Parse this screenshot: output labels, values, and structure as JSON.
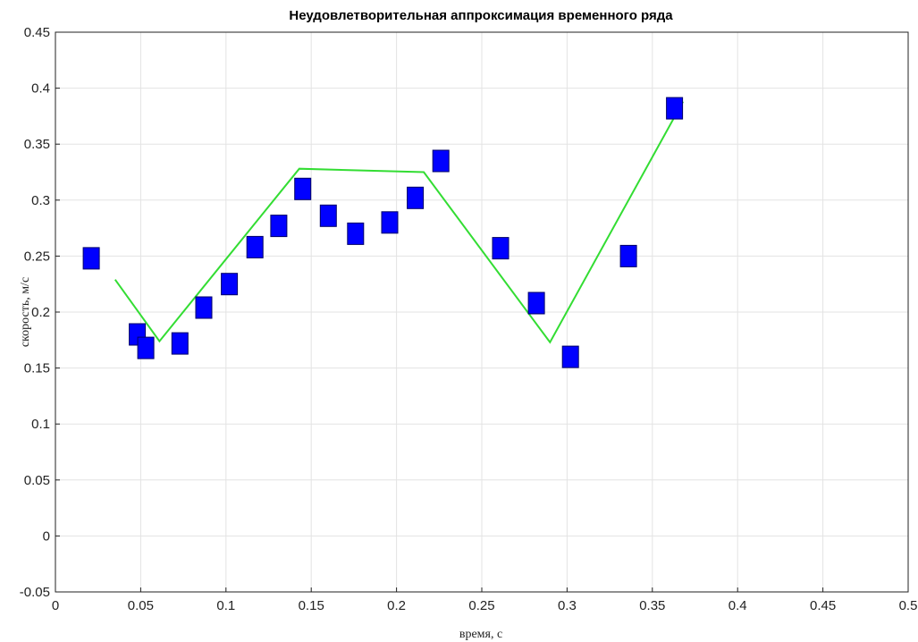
{
  "chart_data": {
    "type": "scatter",
    "title": "Неудовлетворительная аппроксимация временного ряда",
    "xlabel": "время, с",
    "ylabel": "скорость, м/с",
    "xlim": [
      0,
      0.5
    ],
    "ylim": [
      -0.05,
      0.45
    ],
    "xticks": [
      "0",
      "0.05",
      "0.1",
      "0.15",
      "0.2",
      "0.25",
      "0.3",
      "0.35",
      "0.4",
      "0.45",
      "0.5"
    ],
    "yticks": [
      "-0.05",
      "0",
      "0.05",
      "0.1",
      "0.15",
      "0.2",
      "0.25",
      "0.3",
      "0.35",
      "0.4",
      "0.45"
    ],
    "grid": true,
    "series": [
      {
        "kind": "markers",
        "marker": "square",
        "color": "#0000ff",
        "points": [
          [
            0.021,
            0.248
          ],
          [
            0.048,
            0.18
          ],
          [
            0.053,
            0.168
          ],
          [
            0.073,
            0.172
          ],
          [
            0.087,
            0.204
          ],
          [
            0.102,
            0.225
          ],
          [
            0.117,
            0.258
          ],
          [
            0.131,
            0.277
          ],
          [
            0.145,
            0.31
          ],
          [
            0.16,
            0.286
          ],
          [
            0.176,
            0.27
          ],
          [
            0.196,
            0.28
          ],
          [
            0.211,
            0.302
          ],
          [
            0.226,
            0.335
          ],
          [
            0.261,
            0.257
          ],
          [
            0.282,
            0.208
          ],
          [
            0.302,
            0.16
          ],
          [
            0.336,
            0.25
          ],
          [
            0.363,
            0.382
          ]
        ]
      },
      {
        "kind": "line",
        "color": "#33dd33",
        "points": [
          [
            0.035,
            0.229
          ],
          [
            0.061,
            0.174
          ],
          [
            0.143,
            0.328
          ],
          [
            0.216,
            0.325
          ],
          [
            0.29,
            0.173
          ],
          [
            0.368,
            0.388
          ]
        ]
      }
    ]
  }
}
